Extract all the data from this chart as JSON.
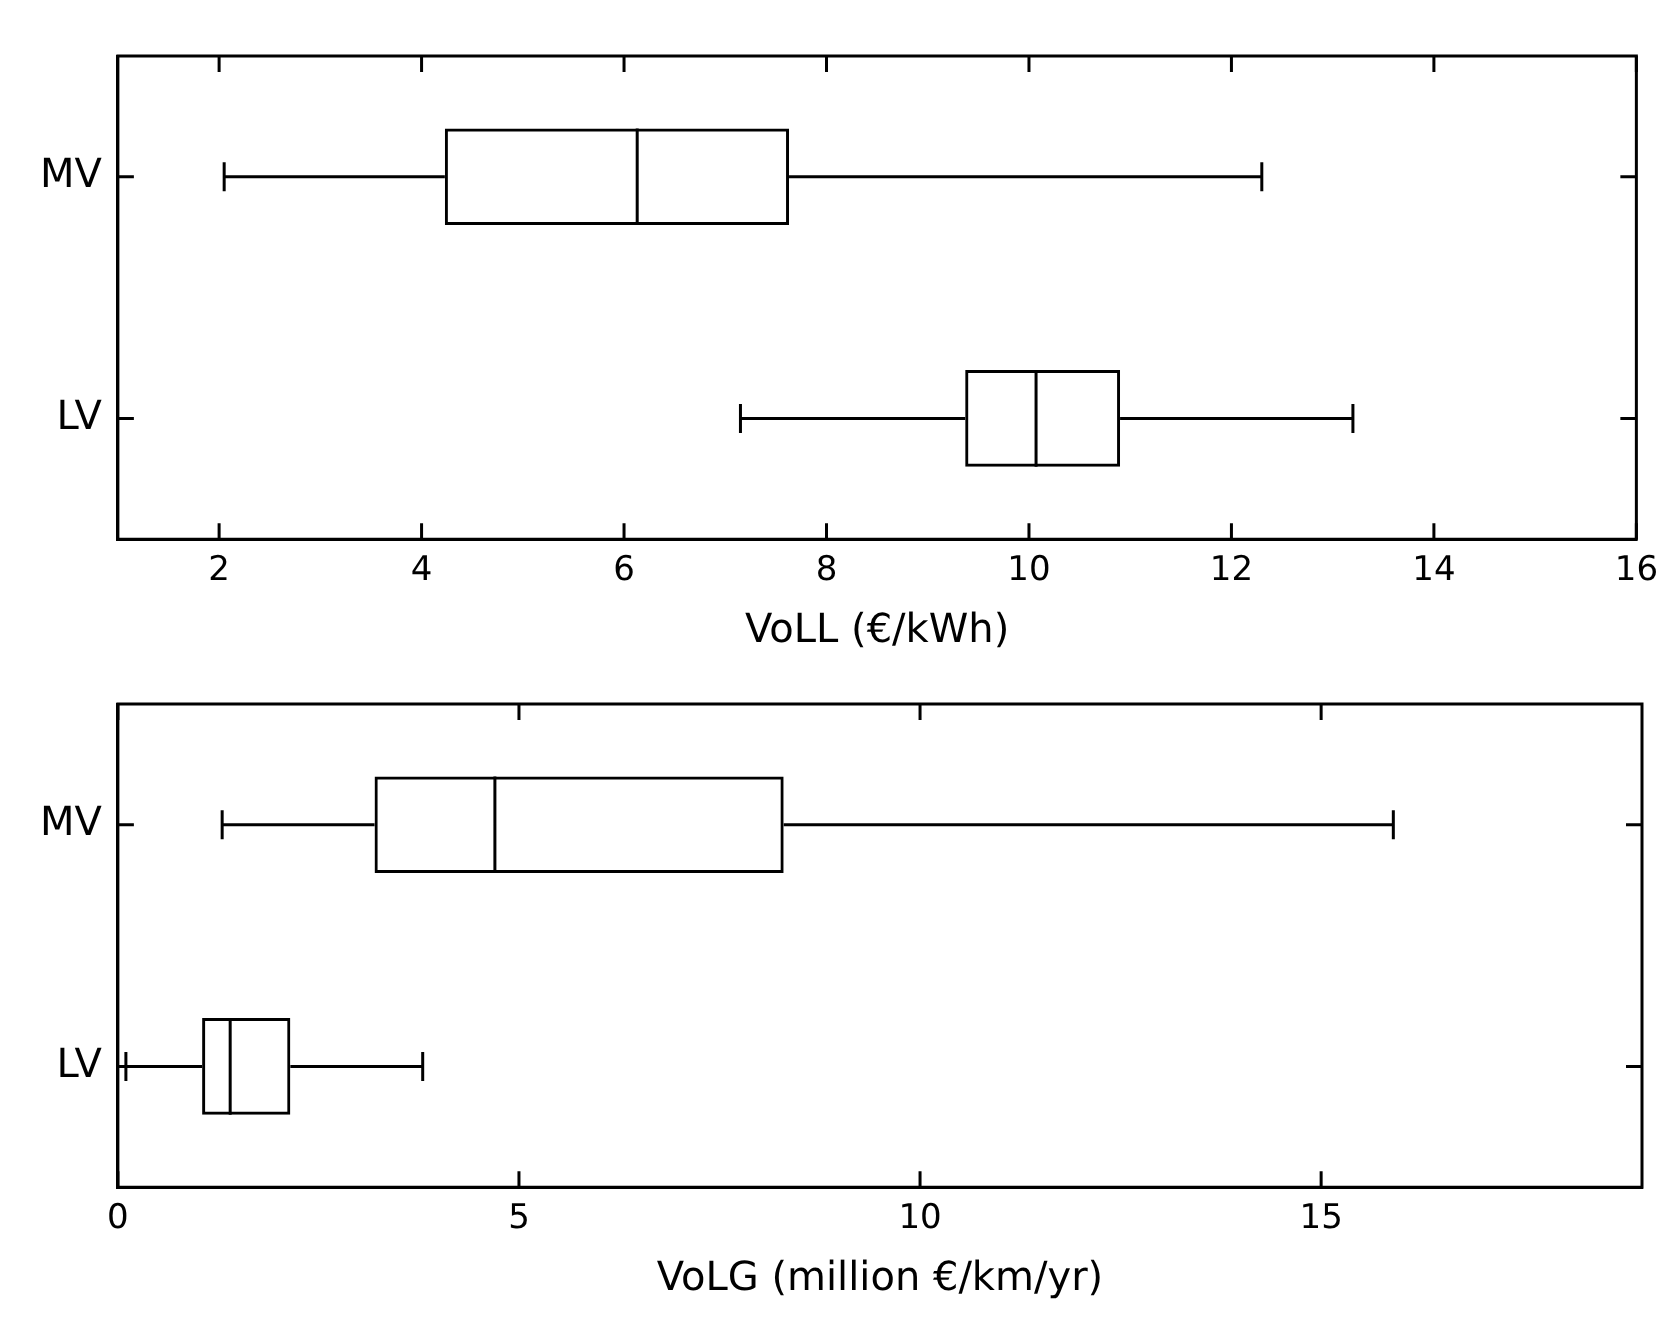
{
  "chart_data": [
    {
      "type": "box",
      "orientation": "horizontal",
      "xlabel": "VoLL (€/kWh)",
      "categories": [
        "MV",
        "LV"
      ],
      "boxes": [
        {
          "low": 2.05,
          "q1": 4.23,
          "median": 6.13,
          "q3": 7.63,
          "high": 12.3
        },
        {
          "low": 7.15,
          "q1": 9.37,
          "median": 10.07,
          "q3": 10.9,
          "high": 13.2
        }
      ],
      "xlim": [
        1,
        16
      ],
      "xticks": [
        2,
        4,
        6,
        8,
        10,
        12,
        14,
        16
      ],
      "grid": false,
      "color": "#000000"
    },
    {
      "type": "box",
      "orientation": "horizontal",
      "xlabel": "VoLG (million €/km/yr)",
      "categories": [
        "MV",
        "LV"
      ],
      "boxes": [
        {
          "low": 1.3,
          "q1": 3.2,
          "median": 4.7,
          "q3": 8.3,
          "high": 15.9
        },
        {
          "low": 0.1,
          "q1": 1.05,
          "median": 1.4,
          "q3": 2.15,
          "high": 3.8
        }
      ],
      "xlim": [
        0,
        19
      ],
      "xticks": [
        0,
        5,
        10,
        15
      ],
      "grid": false,
      "color": "#000000"
    }
  ]
}
